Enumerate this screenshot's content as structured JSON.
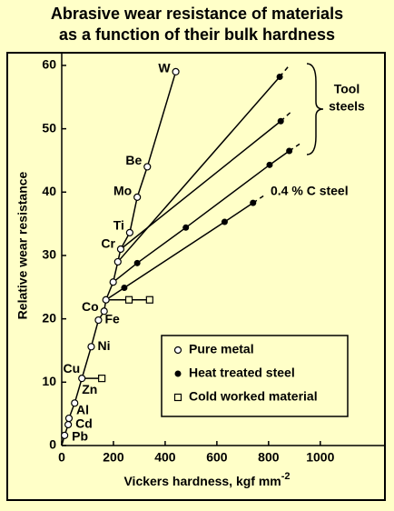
{
  "chart_data": {
    "type": "line",
    "title": "Abrasive wear resistance of materials",
    "subtitle": "as a function of their bulk hardness",
    "x_label": "Vickers hardness, kgf mm",
    "x_label_superscript": "-2",
    "y_label": "Relative wear resistance",
    "xlim": [
      0,
      1250
    ],
    "ylim": [
      0,
      62
    ],
    "xticks": [
      0,
      200,
      400,
      600,
      800,
      1000
    ],
    "yticks": [
      0,
      10,
      20,
      30,
      40,
      50,
      60
    ],
    "pure_metal": {
      "name": "Pure metal",
      "labels": [
        "Pb",
        "Cd",
        "Al",
        "Zn",
        "Cu",
        "Ni",
        "Fe",
        "Co",
        null,
        null,
        null,
        "Cr",
        "Ti",
        "Mo",
        "Be",
        "W"
      ],
      "x": [
        11,
        25,
        28,
        50,
        78,
        114,
        142,
        164,
        171,
        199,
        217,
        228,
        263,
        292,
        331,
        441
      ],
      "y": [
        1.6,
        3.3,
        4.3,
        6.7,
        10.6,
        15.6,
        19.8,
        21.2,
        23,
        25.8,
        29,
        31,
        33.6,
        39.2,
        44,
        59
      ]
    },
    "heat_treated_steel": {
      "name": "Heat treated steel",
      "lines": [
        {
          "x": [
            217,
            843
          ],
          "y": [
            29,
            58.2
          ],
          "dash_to": [
            880,
            60
          ]
        },
        {
          "x": [
            228,
            847
          ],
          "y": [
            31,
            51.2
          ],
          "dash_to": [
            885,
            52.6
          ]
        },
        {
          "x": [
            199,
            292,
            480,
            804,
            880
          ],
          "y": [
            25.8,
            28.8,
            34.4,
            44.3,
            46.5
          ],
          "dash_to": [
            920,
            47.6
          ]
        },
        {
          "x": [
            171,
            242,
            630,
            740
          ],
          "y": [
            23,
            24.9,
            35.3,
            38.3
          ],
          "dash_to": [
            780,
            39.4
          ]
        }
      ]
    },
    "cold_worked_material": {
      "name": "Cold worked material",
      "lines": [
        {
          "x": [
            171,
            260,
            340
          ],
          "y": [
            23,
            23,
            23
          ]
        },
        {
          "x": [
            78,
            155
          ],
          "y": [
            10.6,
            10.6
          ]
        }
      ]
    },
    "annotations": {
      "tool_steels": [
        "Tool",
        "steels"
      ],
      "low_carbon": "0.4 % C steel"
    }
  }
}
